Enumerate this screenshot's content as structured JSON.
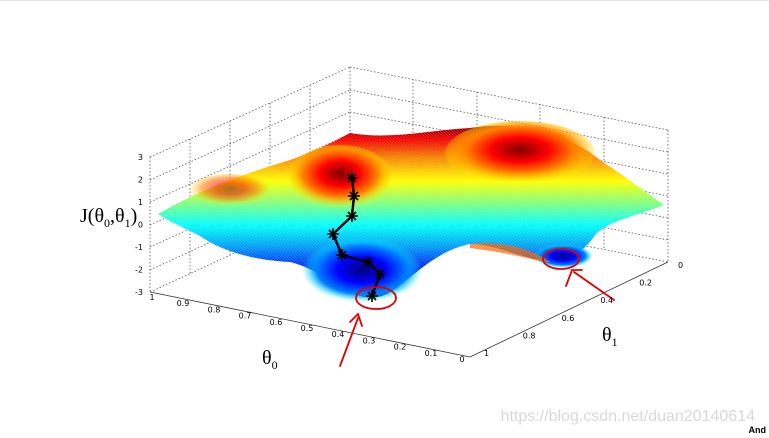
{
  "chart_data": {
    "type": "surface",
    "zlabel": "J(θ0,θ1)",
    "xlabel": "θ0",
    "ylabel": "θ1",
    "z_ticks": [
      "3",
      "2",
      "1",
      "0",
      "-1",
      "-2",
      "-3"
    ],
    "x_ticks": [
      "1",
      "0.9",
      "0.8",
      "0.7",
      "0.6",
      "0.5",
      "0.4",
      "0.3",
      "0.2",
      "0.1",
      "0"
    ],
    "y_ticks": [
      "0",
      "0.2",
      "0.4",
      "0.6",
      "0.8",
      "1"
    ],
    "zlim": [
      -3,
      3
    ],
    "xlim": [
      0,
      1
    ],
    "ylim": [
      0,
      1
    ],
    "grid": true,
    "colormap": "jet",
    "descent_path_points": 8,
    "annotations": [
      {
        "kind": "circle",
        "color": "#e00000",
        "target": "global minimum"
      },
      {
        "kind": "circle",
        "color": "#e00000",
        "target": "local minimum"
      }
    ]
  },
  "footer": {
    "watermark": "https://blog.csdn.net/duan20140614",
    "corner_text": "And"
  }
}
